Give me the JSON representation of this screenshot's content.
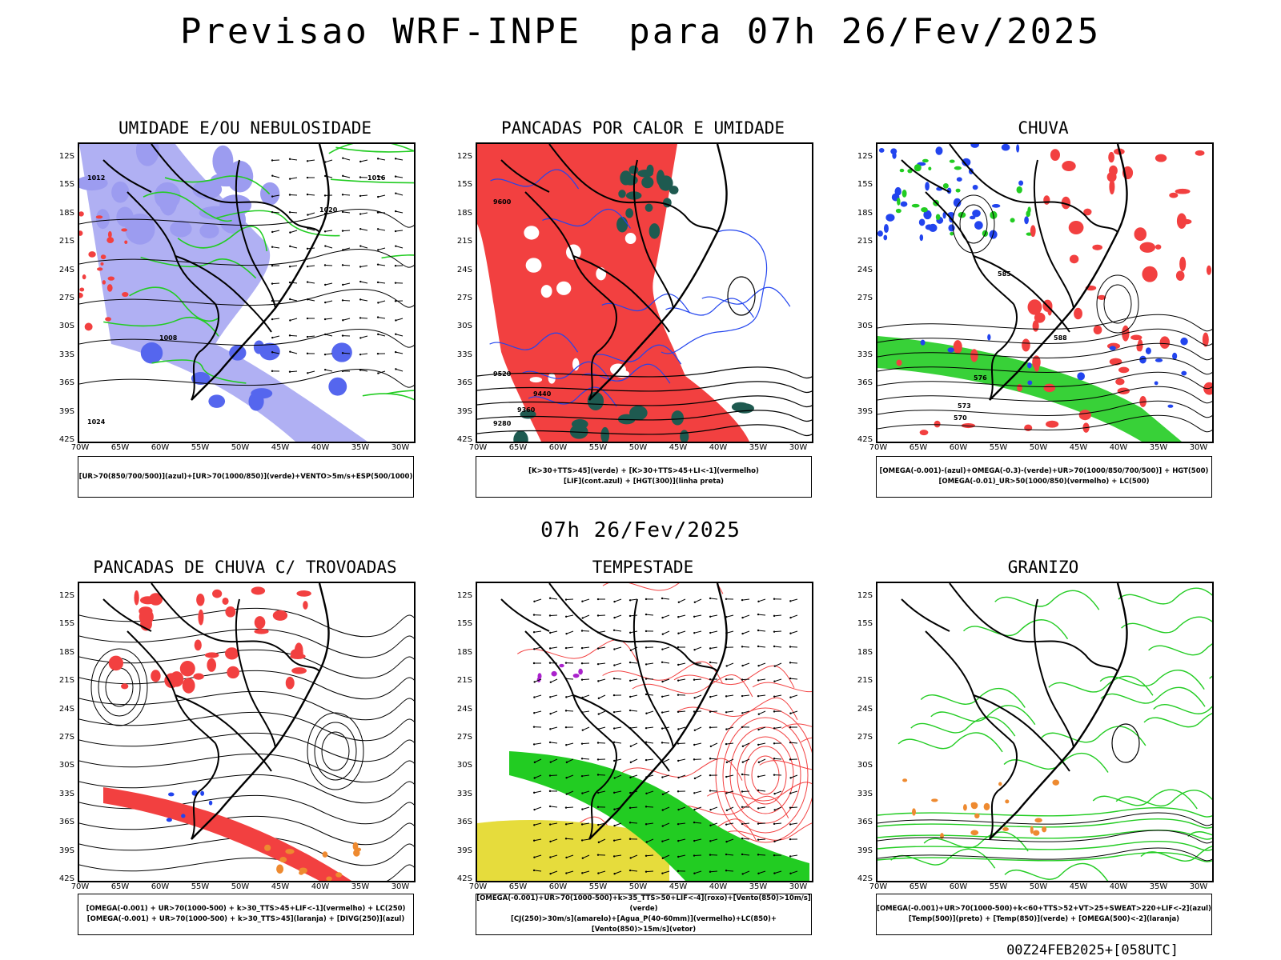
{
  "title": "Previsao WRF-INPE  para 07h 26/Fev/2025",
  "mid_date": "07h 26/Fev/2025",
  "footer": "00Z24FEB2025+[058UTC]",
  "lat_labels": [
    "12S",
    "15S",
    "18S",
    "21S",
    "24S",
    "27S",
    "30S",
    "33S",
    "36S",
    "39S",
    "42S"
  ],
  "lon_labels": [
    "70W",
    "65W",
    "60W",
    "55W",
    "50W",
    "45W",
    "40W",
    "35W",
    "30W"
  ],
  "panels": [
    {
      "title": "UMIDADE E/OU NEBULOSIDADE",
      "legend": [
        "[UR>70(850/700/500)](azul)+[UR>70(1000/850)](verde)+VENTO>5m/s+ESP(500/1000)"
      ]
    },
    {
      "title": "PANCADAS POR CALOR E UMIDADE",
      "legend": [
        "[K>30+TTS>45](verde)  +  [K>30+TTS>45+LI<-1](vermelho)",
        "[LIF](cont.azul)  +  [HGT(300)](linha preta)"
      ]
    },
    {
      "title": "CHUVA",
      "legend": [
        "[OMEGA(-0.001)-(azul)+OMEGA(-0.3)-(verde)+UR>70(1000/850/700/500)]  +  HGT(500)",
        "[OMEGA(-0.01)_UR>50(1000/850)(vermelho)  +  LC(500)"
      ]
    },
    {
      "title": "PANCADAS DE CHUVA C/ TROVOADAS",
      "legend": [
        "[OMEGA(-0.001)  +  UR>70(1000-500)  +  k>30_TTS>45+LIF<-1](vermelho)  +  LC(250)",
        "[OMEGA(-0.001)  +  UR>70(1000-500)  +  k>30_TTS>45](laranja)  +  [DIVG(250)](azul)"
      ]
    },
    {
      "title": "TEMPESTADE",
      "legend": [
        "[OMEGA(-0.001)+UR>70(1000-500)+k>35_TTS>50+LIF<-4](roxo)+[Vento(850)>10m/s](verde)",
        "[CJ(250)>30m/s](amarelo)+[Agua_P(40-60mm)](vermelho)+LC(850)+[Vento(850)>15m/s](vetor)"
      ]
    },
    {
      "title": "GRANIZO",
      "legend": [
        "[OMEGA(-0.001)+UR>70(1000-500)+k<60+TTS>52+VT>25+SWEAT>220+LIF<-2](azul)",
        "[Temp(500)](preto)  +  [Temp(850)](verde)  +  [OMEGA(500)<-2](laranja)"
      ]
    }
  ],
  "contour_labels": {
    "p1": [
      "1012",
      "1016",
      "1020",
      "1008",
      "1024"
    ],
    "p2": [
      "9600",
      "9520",
      "9440",
      "9360",
      "9280"
    ],
    "p3": [
      "585",
      "588",
      "576",
      "573",
      "570"
    ]
  },
  "colors": {
    "red": "#f24040",
    "green": "#22cc22",
    "blue": "#2244ee",
    "lavender": "#9c9cf0",
    "darkteal": "#1e5a50",
    "yellow": "#e6dc3c",
    "orange": "#ee8a30",
    "purple": "#aa22cc"
  }
}
